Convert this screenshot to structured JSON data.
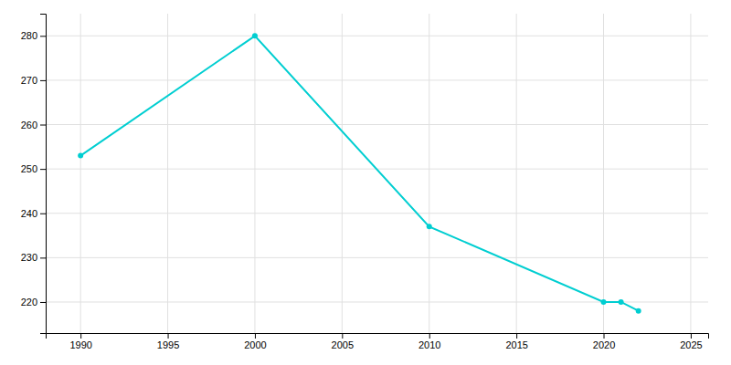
{
  "chart_data": {
    "type": "line",
    "x": [
      1990,
      2000,
      2010,
      2020,
      2021,
      2022
    ],
    "values": [
      253,
      280,
      237,
      220,
      220,
      218
    ],
    "color": "#00CED1",
    "marker": "circle",
    "xlim": [
      1988,
      2026
    ],
    "ylim": [
      213,
      285
    ],
    "xticks": [
      1990,
      1995,
      2000,
      2005,
      2010,
      2015,
      2020,
      2025
    ],
    "yticks": [
      220,
      230,
      240,
      250,
      260,
      270,
      280
    ],
    "grid": true
  }
}
